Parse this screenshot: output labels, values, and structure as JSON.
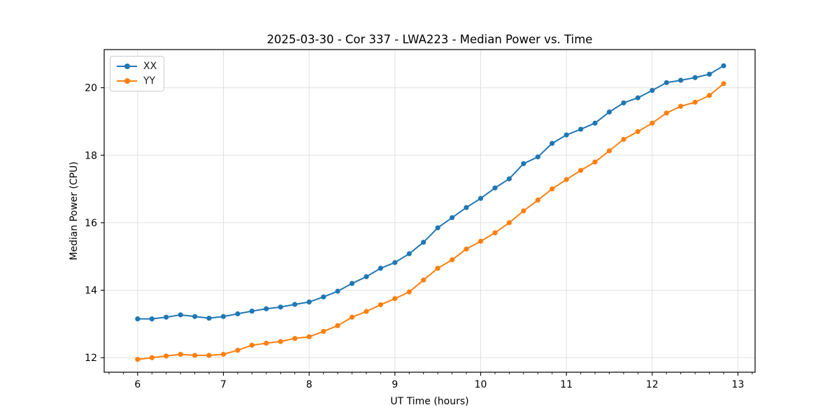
{
  "figure": {
    "background": "#ffffff"
  },
  "chart_data": {
    "type": "line",
    "title": "2025-03-30 - Cor 337 - LWA223 - Median Power vs. Time",
    "xlabel": "UT Time (hours)",
    "ylabel": "Median Power (CPU)",
    "xlim": [
      5.61,
      13.2
    ],
    "ylim": [
      11.57,
      21.13
    ],
    "xticks": [
      6,
      7,
      8,
      9,
      10,
      11,
      12,
      13
    ],
    "yticks": [
      12,
      14,
      16,
      18,
      20
    ],
    "x_minor_step": 0.1666667,
    "grid": true,
    "grid_color": "#e0e0e0",
    "spine_color": "#000000",
    "legend_position": "upper left",
    "x": [
      6.0,
      6.167,
      6.333,
      6.5,
      6.667,
      6.833,
      7.0,
      7.167,
      7.333,
      7.5,
      7.667,
      7.833,
      8.0,
      8.167,
      8.333,
      8.5,
      8.667,
      8.833,
      9.0,
      9.167,
      9.333,
      9.5,
      9.667,
      9.833,
      10.0,
      10.167,
      10.333,
      10.5,
      10.667,
      10.833,
      11.0,
      11.167,
      11.333,
      11.5,
      11.667,
      11.833,
      12.0,
      12.167,
      12.333,
      12.5,
      12.667,
      12.833
    ],
    "series": [
      {
        "name": "XX",
        "color": "#1f77b4",
        "values": [
          13.15,
          13.15,
          13.2,
          13.27,
          13.22,
          13.17,
          13.22,
          13.3,
          13.38,
          13.45,
          13.5,
          13.58,
          13.65,
          13.8,
          13.97,
          14.2,
          14.4,
          14.65,
          14.82,
          15.08,
          15.42,
          15.85,
          16.15,
          16.45,
          16.72,
          17.03,
          17.3,
          17.75,
          17.95,
          18.35,
          18.6,
          18.77,
          18.95,
          19.28,
          19.55,
          19.7,
          19.92,
          20.15,
          20.22,
          20.3,
          20.4,
          20.65
        ]
      },
      {
        "name": "YY",
        "color": "#ff7f0e",
        "values": [
          11.95,
          12.0,
          12.05,
          12.1,
          12.07,
          12.07,
          12.1,
          12.22,
          12.37,
          12.43,
          12.48,
          12.57,
          12.62,
          12.78,
          12.95,
          13.2,
          13.37,
          13.57,
          13.75,
          13.95,
          14.3,
          14.65,
          14.9,
          15.22,
          15.45,
          15.7,
          16.0,
          16.35,
          16.67,
          17.0,
          17.28,
          17.55,
          17.8,
          18.13,
          18.47,
          18.7,
          18.95,
          19.25,
          19.45,
          19.57,
          19.77,
          20.12
        ]
      }
    ]
  }
}
